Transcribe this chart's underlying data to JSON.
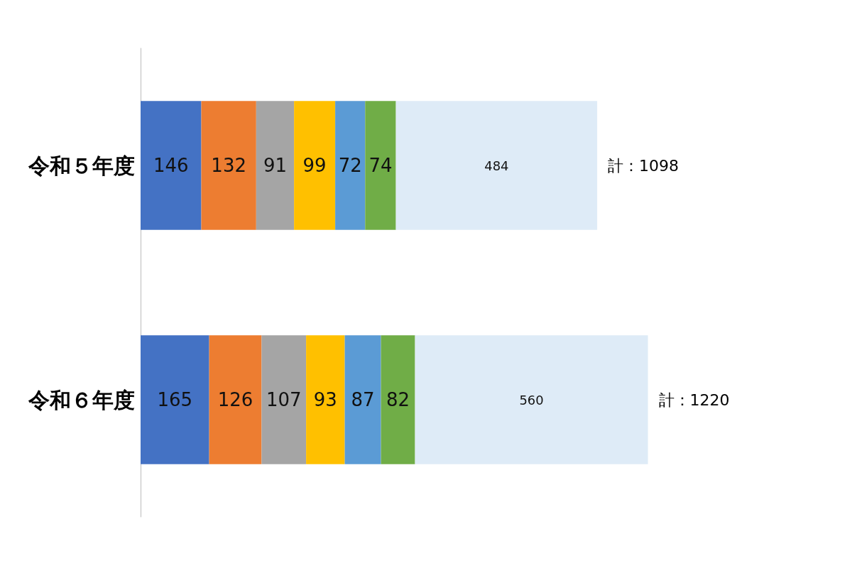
{
  "chart_data": {
    "type": "bar",
    "orientation": "horizontal",
    "stacked": true,
    "data_labels": true,
    "tick_labels": "y",
    "categories": [
      "令和５年度",
      "令和６年度"
    ],
    "series": [
      {
        "color": "#4472c4",
        "values": [
          146,
          165
        ]
      },
      {
        "color": "#ed7d31",
        "values": [
          132,
          126
        ]
      },
      {
        "color": "#a5a5a5",
        "values": [
          91,
          107
        ]
      },
      {
        "color": "#ffc000",
        "values": [
          99,
          93
        ]
      },
      {
        "color": "#5b9bd5",
        "values": [
          72,
          87
        ]
      },
      {
        "color": "#70ad47",
        "values": [
          74,
          82
        ]
      },
      {
        "color": "#deebf7",
        "values": [
          484,
          560
        ]
      }
    ],
    "totals": [
      "計：1098",
      "計：1220"
    ]
  }
}
